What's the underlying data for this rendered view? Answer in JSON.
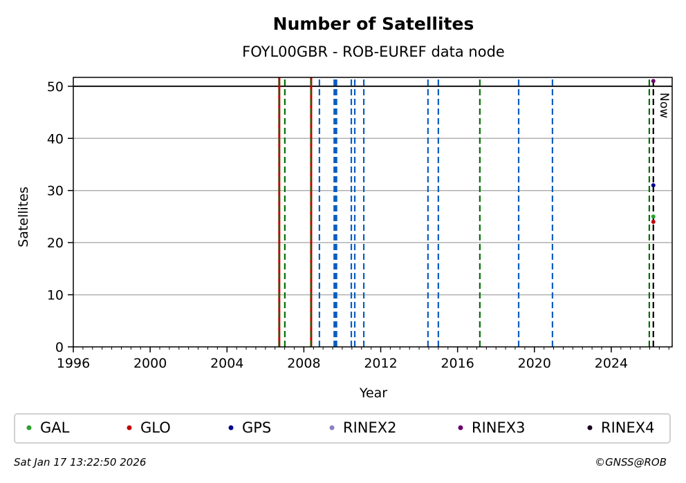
{
  "chart_data": {
    "type": "scatter",
    "title": "Number of Satellites",
    "subtitle": "FOYL00GBR - ROB-EUREF data node",
    "xlabel": "Year",
    "ylabel": "Satellites",
    "xlim": [
      1996,
      2027.17
    ],
    "ylim": [
      0,
      51.7
    ],
    "xticks": [
      1996,
      2000,
      2004,
      2008,
      2012,
      2016,
      2020,
      2024
    ],
    "yticks": [
      0,
      10,
      20,
      30,
      40,
      50
    ],
    "grid": "horizontal",
    "reference_line": {
      "y": 50,
      "color": "#000000"
    },
    "now": {
      "label": "Now",
      "x": 2026.19,
      "color": "#000000"
    },
    "event_lines": [
      {
        "x": 2006.72,
        "color": "#c00000",
        "style": "solid-with-green-dash"
      },
      {
        "x": 2007.01,
        "color": "#007000",
        "style": "dashed"
      },
      {
        "x": 2008.38,
        "color": "#c00000",
        "style": "solid-with-green-dash"
      },
      {
        "x": 2008.81,
        "color": "#0a5cc0",
        "style": "dashed"
      },
      {
        "x": 2009.58,
        "color": "#0a5cc0",
        "style": "dashed"
      },
      {
        "x": 2009.64,
        "color": "#0a5cc0",
        "style": "dashed"
      },
      {
        "x": 2009.7,
        "color": "#0a5cc0",
        "style": "dashed"
      },
      {
        "x": 2010.47,
        "color": "#0a5cc0",
        "style": "dashed"
      },
      {
        "x": 2010.65,
        "color": "#0a5cc0",
        "style": "dashed"
      },
      {
        "x": 2011.12,
        "color": "#0a5cc0",
        "style": "dashed"
      },
      {
        "x": 2014.46,
        "color": "#0a5cc0",
        "style": "dashed"
      },
      {
        "x": 2015.0,
        "color": "#0a5cc0",
        "style": "dashed"
      },
      {
        "x": 2017.16,
        "color": "#007000",
        "style": "dashed"
      },
      {
        "x": 2019.18,
        "color": "#0a5cc0",
        "style": "dashed"
      },
      {
        "x": 2020.94,
        "color": "#0a5cc0",
        "style": "dashed"
      },
      {
        "x": 2025.98,
        "color": "#007000",
        "style": "dashed"
      }
    ],
    "series": [
      {
        "name": "GAL",
        "color": "#2ca02c",
        "points": [
          [
            2026.19,
            25
          ]
        ]
      },
      {
        "name": "GLO",
        "color": "#c00000",
        "points": [
          [
            2026.19,
            24
          ]
        ]
      },
      {
        "name": "GPS",
        "color": "#00008b",
        "points": [
          [
            2026.19,
            31
          ]
        ]
      },
      {
        "name": "RINEX2",
        "color": "#8a80c4",
        "points": []
      },
      {
        "name": "RINEX3",
        "color": "#6a006a",
        "points": [
          [
            2026.19,
            51
          ]
        ]
      },
      {
        "name": "RINEX4",
        "color": "#1a0020",
        "points": []
      }
    ],
    "legend": "bottom"
  },
  "footer": {
    "timestamp": "Sat Jan 17 13:22:50 2026",
    "copyright": "©GNSS@ROB"
  }
}
